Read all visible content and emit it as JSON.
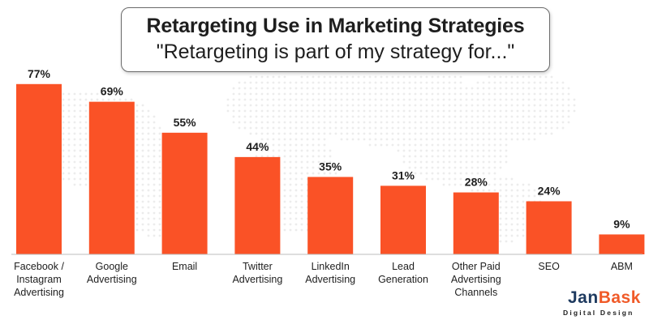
{
  "chart_data": {
    "type": "bar",
    "title": "Retargeting Use in Marketing Strategies",
    "subtitle": "\"Retargeting is part of my strategy for...\"",
    "categories": [
      [
        "Facebook /",
        "Instagram",
        "Advertising"
      ],
      [
        "Google",
        "Advertising"
      ],
      [
        "Email"
      ],
      [
        "Twitter",
        "Advertising"
      ],
      [
        "LinkedIn",
        "Advertising"
      ],
      [
        "Lead",
        "Generation"
      ],
      [
        "Other Paid",
        "Advertising",
        "Channels"
      ],
      [
        "SEO"
      ],
      [
        "ABM"
      ]
    ],
    "values": [
      77,
      69,
      55,
      44,
      35,
      31,
      28,
      24,
      9
    ],
    "value_labels": [
      "77%",
      "69%",
      "55%",
      "44%",
      "35%",
      "31%",
      "28%",
      "24%",
      "9%"
    ],
    "ylim": [
      0,
      100
    ],
    "grid": false,
    "legend": "none",
    "bar_color": "#fa5226"
  },
  "logo": {
    "main_dark": "Jan",
    "main_accent": "Bask",
    "tagline": "Digital Design",
    "colors": {
      "dark": "#1e3a5f",
      "accent": "#f05a28"
    }
  }
}
